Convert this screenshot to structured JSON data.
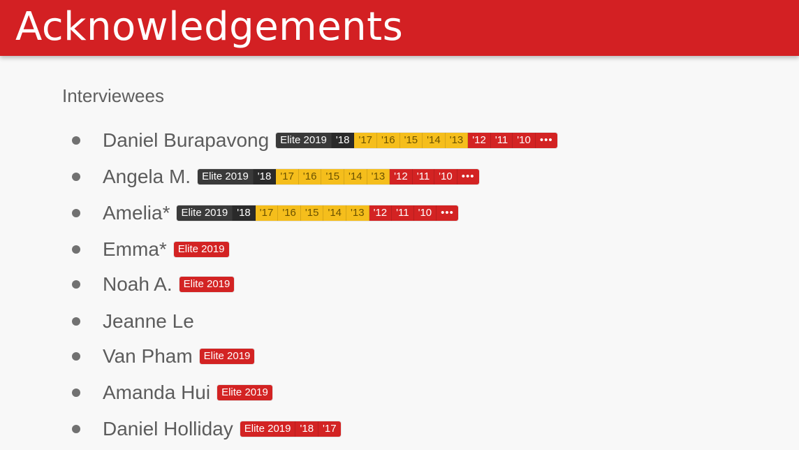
{
  "header": {
    "title": "Acknowledgements"
  },
  "section": {
    "heading": "Interviewees"
  },
  "colors": {
    "header_bg": "#d32023",
    "elite_dark": "#3a3a3a",
    "elite_gold": "#f5be1c",
    "elite_red": "#d32323"
  },
  "interviewees": [
    {
      "name": "Daniel Burapavong",
      "badges": [
        "Elite 2019",
        "'18",
        "'17",
        "'16",
        "'15",
        "'14",
        "'13",
        "'12",
        "'11",
        "'10",
        "•••"
      ],
      "badge_styles": [
        "dark",
        "darker",
        "gold",
        "gold",
        "gold",
        "gold",
        "gold",
        "red",
        "red",
        "red",
        "more"
      ]
    },
    {
      "name": "Angela M.",
      "badges": [
        "Elite 2019",
        "'18",
        "'17",
        "'16",
        "'15",
        "'14",
        "'13",
        "'12",
        "'11",
        "'10",
        "•••"
      ],
      "badge_styles": [
        "dark",
        "darker",
        "gold",
        "gold",
        "gold",
        "gold",
        "gold",
        "red",
        "red",
        "red",
        "more"
      ]
    },
    {
      "name": "Amelia*",
      "badges": [
        "Elite 2019",
        "'18",
        "'17",
        "'16",
        "'15",
        "'14",
        "'13",
        "'12",
        "'11",
        "'10",
        "•••"
      ],
      "badge_styles": [
        "dark",
        "darker",
        "gold",
        "gold",
        "gold",
        "gold",
        "gold",
        "red",
        "red",
        "red",
        "more"
      ]
    },
    {
      "name": "Emma*",
      "badges": [
        "Elite 2019"
      ],
      "badge_styles": [
        "red"
      ]
    },
    {
      "name": "Noah A.",
      "badges": [
        "Elite 2019"
      ],
      "badge_styles": [
        "red"
      ]
    },
    {
      "name": "Jeanne Le",
      "badges": [],
      "badge_styles": []
    },
    {
      "name": "Van Pham",
      "badges": [
        "Elite 2019"
      ],
      "badge_styles": [
        "red"
      ]
    },
    {
      "name": "Amanda Hui",
      "badges": [
        "Elite 2019"
      ],
      "badge_styles": [
        "red"
      ]
    },
    {
      "name": "Daniel Holliday",
      "badges": [
        "Elite 2019",
        "'18",
        "'17"
      ],
      "badge_styles": [
        "red",
        "red",
        "red"
      ]
    }
  ]
}
